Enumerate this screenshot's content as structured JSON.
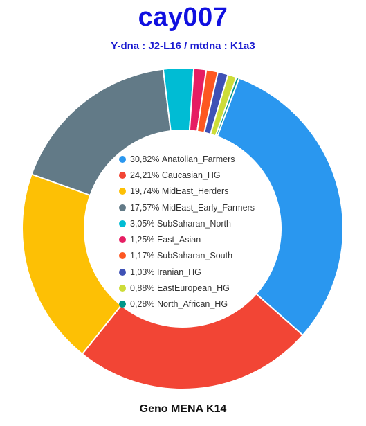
{
  "header": {
    "title": "cay007",
    "subtitle": "Y-dna : J2-L16 / mtdna : K1a3"
  },
  "footer": {
    "label": "Geno MENA K14"
  },
  "chart_data": {
    "type": "pie",
    "variant": "donut",
    "legend_position": "center",
    "slices": [
      {
        "label": "Anatolian_Farmers",
        "display": "30,82%",
        "value": 30.82,
        "color": "#2a97ef"
      },
      {
        "label": "Caucasian_HG",
        "display": "24,21%",
        "value": 24.21,
        "color": "#f24535"
      },
      {
        "label": "MidEast_Herders",
        "display": "19,74%",
        "value": 19.74,
        "color": "#fdc005"
      },
      {
        "label": "MidEast_Early_Farmers",
        "display": "17,57%",
        "value": 17.57,
        "color": "#627a87"
      },
      {
        "label": "SubSaharan_North",
        "display": "3,05%",
        "value": 3.05,
        "color": "#00bcd4"
      },
      {
        "label": "East_Asian",
        "display": "1,25%",
        "value": 1.25,
        "color": "#e61e63"
      },
      {
        "label": "SubSaharan_South",
        "display": "1,17%",
        "value": 1.17,
        "color": "#fd5722"
      },
      {
        "label": "Iranian_HG",
        "display": "1,03%",
        "value": 1.03,
        "color": "#3f51b5"
      },
      {
        "label": "EastEuropean_HG",
        "display": "0,88%",
        "value": 0.88,
        "color": "#cddc39"
      },
      {
        "label": "North_African_HG",
        "display": "0,28%",
        "value": 0.28,
        "color": "#009688"
      }
    ]
  }
}
